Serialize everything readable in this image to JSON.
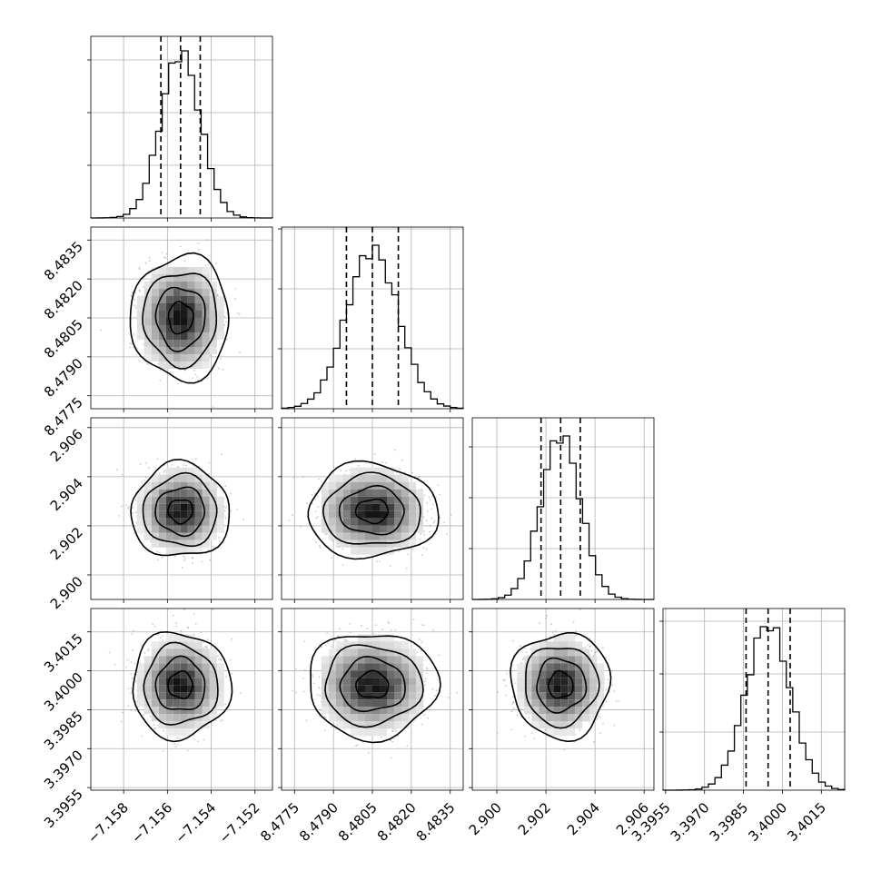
{
  "chart_data": {
    "type": "corner",
    "grid": true,
    "parameters": [
      {
        "index": 0,
        "range": [
          -7.1595,
          -7.1512
        ],
        "ticks": [
          -7.158,
          -7.156,
          -7.154,
          -7.152
        ],
        "tick_labels": [
          "−7.158",
          "−7.156",
          "−7.154",
          "−7.152"
        ],
        "mean": -7.1554,
        "sd": 0.0009,
        "quantiles": [
          -7.1563,
          -7.1554,
          -7.1545
        ],
        "hist_peak_fraction": 0.92,
        "hist_ticks_fraction": [
          0.29,
          0.58,
          0.87
        ]
      },
      {
        "index": 1,
        "range": [
          8.477,
          8.484
        ],
        "ticks": [
          8.4775,
          8.479,
          8.4805,
          8.482,
          8.4835
        ],
        "tick_labels": [
          "8.4775",
          "8.4790",
          "8.4805",
          "8.4820",
          "8.4835"
        ],
        "mean": 8.4805,
        "sd": 0.001,
        "quantiles": [
          8.4795,
          8.4805,
          8.4815
        ],
        "hist_peak_fraction": 0.9,
        "hist_ticks_fraction": [
          0.33,
          0.66,
          0.99
        ]
      },
      {
        "index": 2,
        "range": [
          2.899,
          2.9064
        ],
        "ticks": [
          2.9,
          2.902,
          2.904,
          2.906
        ],
        "tick_labels": [
          "2.900",
          "2.902",
          "2.904",
          "2.906"
        ],
        "mean": 2.9026,
        "sd": 0.0008,
        "quantiles": [
          2.9018,
          2.9026,
          2.9034
        ],
        "hist_peak_fraction": 0.9,
        "hist_ticks_fraction": [
          0.28,
          0.56,
          0.84
        ]
      },
      {
        "index": 3,
        "range": [
          3.3954,
          3.4024
        ],
        "ticks": [
          3.3955,
          3.397,
          3.3985,
          3.4,
          3.4015
        ],
        "tick_labels": [
          "3.3955",
          "3.3970",
          "3.3985",
          "3.4000",
          "3.4015"
        ],
        "mean": 3.39945,
        "sd": 0.00085,
        "quantiles": [
          3.3986,
          3.39945,
          3.4003
        ],
        "hist_peak_fraction": 0.9,
        "hist_ticks_fraction": [
          0.32,
          0.64,
          0.93
        ]
      }
    ],
    "contour_levels_sigma": [
      0.5,
      1.0,
      1.5,
      2.0
    ],
    "colors": {
      "frame": "#000000",
      "grid": "#b0b0b0",
      "points": "#8a8a8a"
    }
  }
}
